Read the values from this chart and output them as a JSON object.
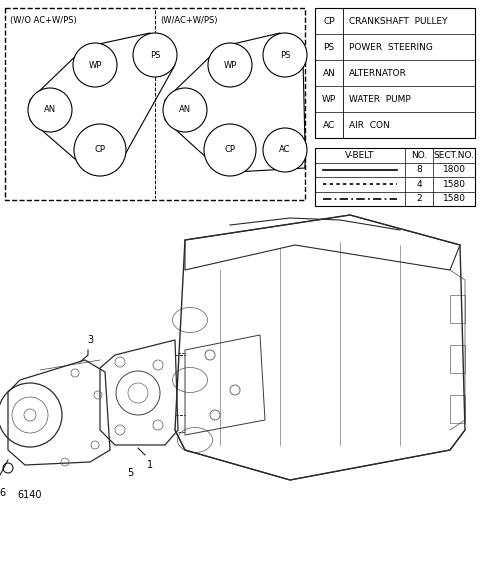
{
  "bg_color": "#ffffff",
  "legend_items": [
    {
      "abbr": "CP",
      "desc": "CRANKSHAFT  PULLEY"
    },
    {
      "abbr": "PS",
      "desc": "POWER  STEERING"
    },
    {
      "abbr": "AN",
      "desc": "ALTERNATOR"
    },
    {
      "abbr": "WP",
      "desc": "WATER  PUMP"
    },
    {
      "abbr": "AC",
      "desc": "AIR  CON"
    }
  ],
  "vbelt_rows": [
    {
      "no": "8",
      "sect": "1800"
    },
    {
      "no": "4",
      "sect": "1580"
    },
    {
      "no": "2",
      "sect": "1580"
    }
  ],
  "diagram1_label": "(W/O AC+W/PS)",
  "diagram2_label": "(W/AC+W/PS)",
  "part_labels": [
    "1",
    "3",
    "5",
    "6",
    "6140"
  ]
}
